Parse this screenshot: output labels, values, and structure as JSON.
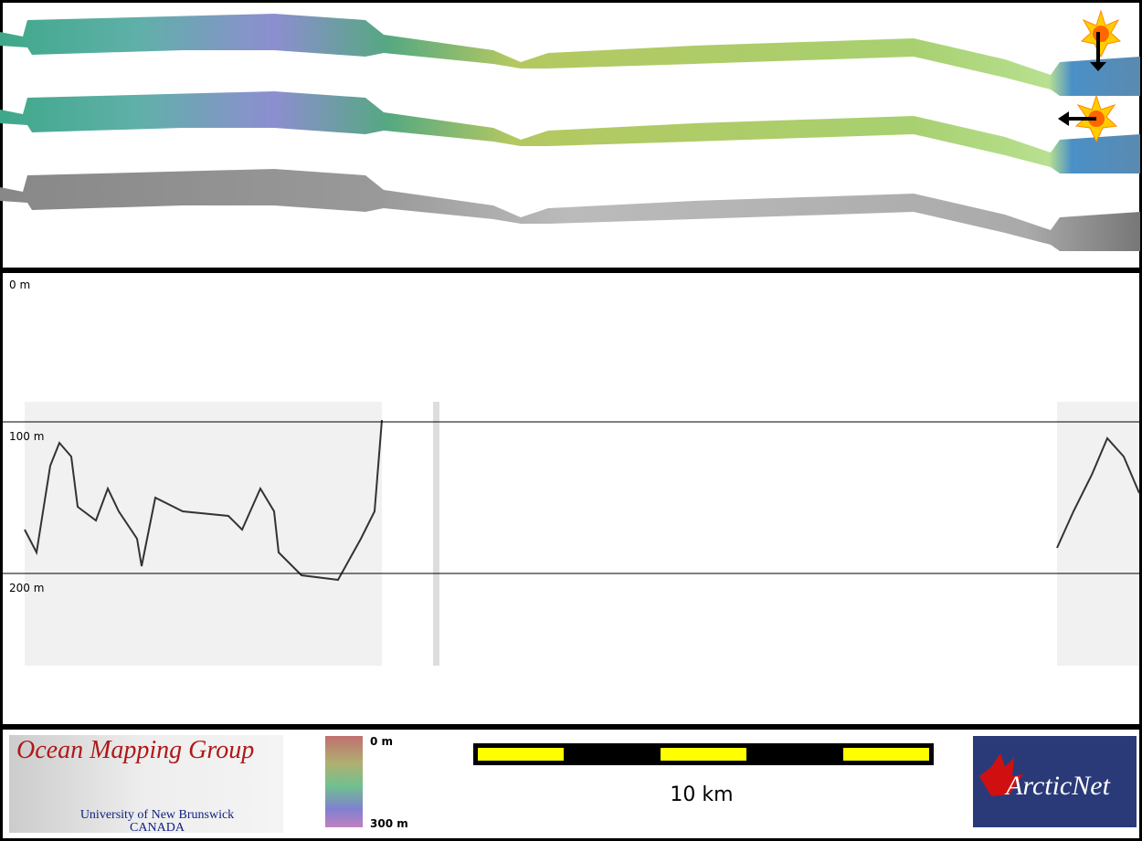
{
  "profile": {
    "depth_labels": [
      "0 m",
      "100 m",
      "200 m"
    ]
  },
  "footer": {
    "logo_title": "Ocean Mapping Group",
    "logo_line1": "University of New Brunswick",
    "logo_line2": "CANADA",
    "colorbar_top": "0 m",
    "colorbar_bottom": "300 m",
    "scale_label": "10 km",
    "arcticnet": "ArcticNet"
  }
}
